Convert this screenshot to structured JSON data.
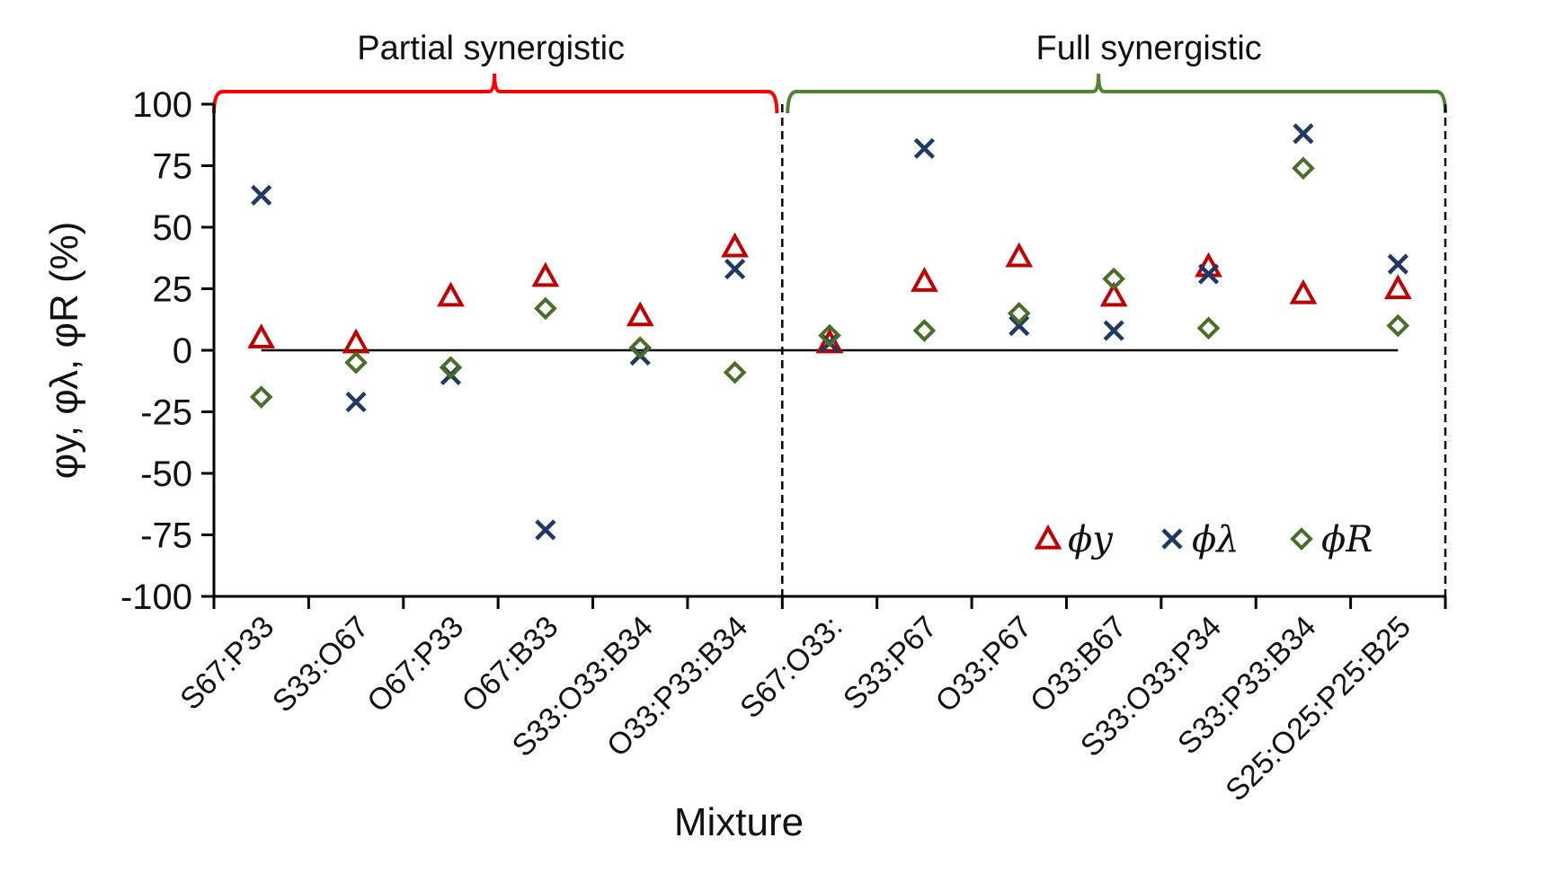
{
  "chart_data": {
    "type": "scatter",
    "title": "",
    "xlabel": "Mixture",
    "ylabel": "φy, φλ, φR (%)",
    "ylim": [
      -100,
      100
    ],
    "yticks": [
      100,
      75,
      50,
      25,
      0,
      -25,
      -50,
      -75,
      -100
    ],
    "grid": false,
    "legend_position": "bottom-right",
    "categories": [
      "S67:P33",
      "S33:O67",
      "O67:P33",
      "O67:B33",
      "S33:O33:B34",
      "O33:P33:B34",
      "S67:O33:",
      "S33:P67",
      "O33:P67",
      "O33:B67",
      "S33:O33:P34",
      "S33:P33:B34",
      "S25:O25:P25:B25"
    ],
    "series": [
      {
        "name": "ϕy",
        "marker": "triangle",
        "color": "#c00000",
        "values": [
          5,
          3,
          22,
          30,
          14,
          42,
          3,
          28,
          38,
          22,
          34,
          23,
          25
        ]
      },
      {
        "name": "ϕλ",
        "marker": "x",
        "color": "#1f3864",
        "values": [
          63,
          -21,
          -10,
          -73,
          -2,
          33,
          3,
          82,
          10,
          8,
          31,
          88,
          35
        ]
      },
      {
        "name": "ϕR",
        "marker": "diamond",
        "color": "#4a6e2a",
        "values": [
          -19,
          -5,
          -7,
          17,
          1,
          -9,
          6,
          8,
          15,
          29,
          9,
          74,
          10
        ]
      }
    ],
    "groups": [
      {
        "label": "Partial synergistic",
        "color": "#ff0000",
        "from_category": 0,
        "to_category": 5
      },
      {
        "label": "Full synergistic",
        "color": "#548235",
        "from_category": 6,
        "to_category": 12
      }
    ],
    "reference_line_value": 0
  }
}
